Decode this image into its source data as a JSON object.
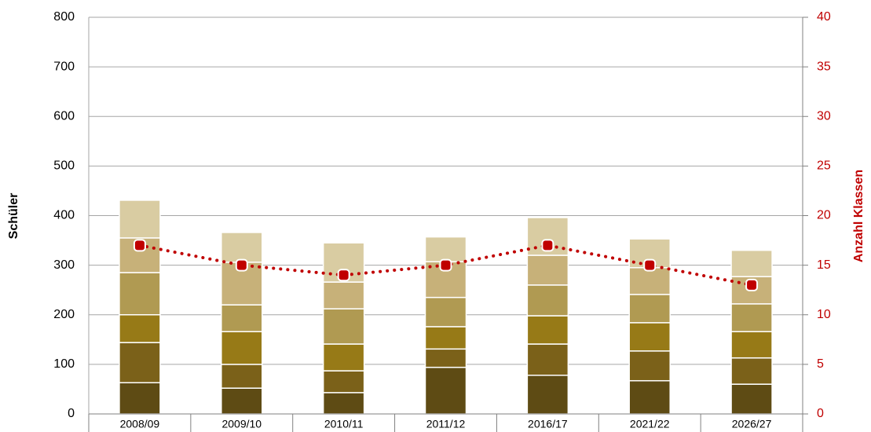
{
  "chart_data": {
    "type": "bar",
    "stacked": true,
    "y_label": "Schüler",
    "y2_label": "Anzahl Klassen",
    "categories": [
      "2008/09",
      "2009/10",
      "2010/11",
      "2011/12",
      "2016/17",
      "2021/22",
      "2026/27"
    ],
    "series": [
      {
        "color": "#5e4b14",
        "values": [
          63,
          52,
          43,
          94,
          78,
          67,
          60
        ]
      },
      {
        "color": "#7b6119",
        "values": [
          81,
          48,
          44,
          37,
          63,
          60,
          53
        ]
      },
      {
        "color": "#977a17",
        "values": [
          56,
          66,
          54,
          45,
          57,
          57,
          53
        ]
      },
      {
        "color": "#b09a52",
        "values": [
          85,
          54,
          71,
          59,
          62,
          57,
          56
        ]
      },
      {
        "color": "#c7b179",
        "values": [
          70,
          86,
          54,
          72,
          60,
          54,
          55
        ]
      },
      {
        "color": "#d9cca2",
        "values": [
          76,
          60,
          79,
          50,
          76,
          58,
          53
        ]
      },
      {
        "type": "line",
        "axis": "y2",
        "color": "#c00000",
        "values": [
          17,
          15,
          14,
          15,
          17,
          15,
          13
        ]
      }
    ],
    "ylim": [
      0,
      800
    ],
    "yticks": [
      0,
      100,
      200,
      300,
      400,
      500,
      600,
      700,
      800
    ],
    "y2lim": [
      0,
      40
    ],
    "y2ticks": [
      0,
      5,
      10,
      15,
      20,
      25,
      30,
      35,
      40
    ],
    "grid": true
  }
}
